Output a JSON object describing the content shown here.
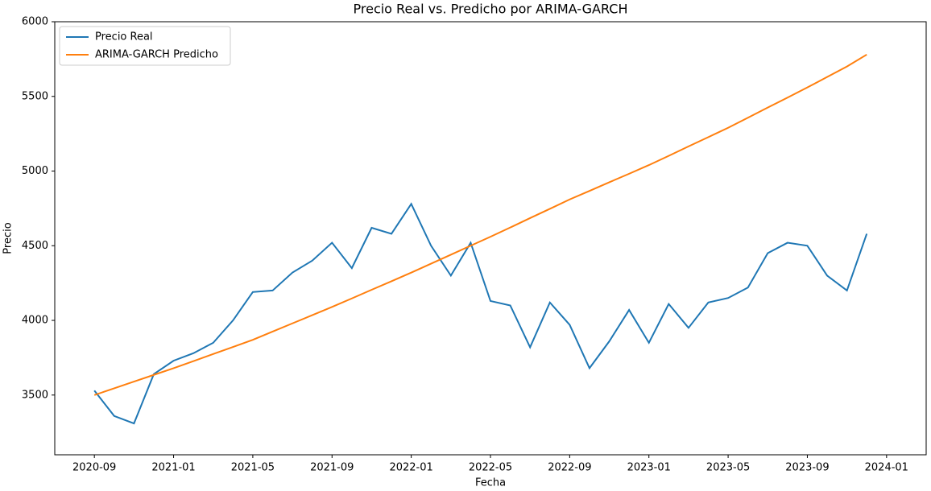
{
  "chart_data": {
    "type": "line",
    "title": "Precio Real vs. Predicho por ARIMA-GARCH",
    "x_label": "Fecha",
    "y_label": "Precio",
    "x": [
      "2020-09",
      "2020-10",
      "2020-11",
      "2020-12",
      "2021-01",
      "2021-02",
      "2021-03",
      "2021-04",
      "2021-05",
      "2021-06",
      "2021-07",
      "2021-08",
      "2021-09",
      "2021-10",
      "2021-11",
      "2021-12",
      "2022-01",
      "2022-02",
      "2022-03",
      "2022-04",
      "2022-05",
      "2022-06",
      "2022-07",
      "2022-08",
      "2022-09",
      "2022-10",
      "2022-11",
      "2022-12",
      "2023-01",
      "2023-02",
      "2023-03",
      "2023-04",
      "2023-05",
      "2023-06",
      "2023-07",
      "2023-08",
      "2023-09",
      "2023-10",
      "2023-11",
      "2023-12"
    ],
    "series": [
      {
        "name": "Precio Real",
        "color": "#1f77b4",
        "values": [
          3530,
          3360,
          3310,
          3640,
          3730,
          3780,
          3850,
          4000,
          4190,
          4200,
          4320,
          4400,
          4520,
          4350,
          4620,
          4580,
          4780,
          4500,
          4300,
          4520,
          4130,
          4100,
          3820,
          4120,
          3970,
          3680,
          3860,
          4070,
          3850,
          4110,
          3950,
          4120,
          4150,
          4220,
          4450,
          4520,
          4500,
          4300,
          4200,
          4580
        ]
      },
      {
        "name": "ARIMA-GARCH Predicho",
        "color": "#ff7f0e",
        "values": [
          3500,
          3545,
          3590,
          3635,
          3680,
          3727,
          3775,
          3822,
          3870,
          3925,
          3980,
          4035,
          4090,
          4147,
          4205,
          4262,
          4320,
          4380,
          4440,
          4500,
          4560,
          4622,
          4685,
          4747,
          4810,
          4867,
          4925,
          4982,
          5040,
          5102,
          5165,
          5227,
          5290,
          5357,
          5425,
          5492,
          5560,
          5630,
          5700,
          5780
        ]
      }
    ],
    "xlim": [
      "2020-07",
      "2024-03"
    ],
    "xticks": [
      "2020-09",
      "2021-01",
      "2021-05",
      "2021-09",
      "2022-01",
      "2022-05",
      "2022-09",
      "2023-01",
      "2023-05",
      "2023-09",
      "2024-01"
    ],
    "ylim": [
      3100,
      6000
    ],
    "yticks": [
      3500,
      4000,
      4500,
      5000,
      5500,
      6000
    ],
    "legend": "upper-left",
    "grid": false
  }
}
